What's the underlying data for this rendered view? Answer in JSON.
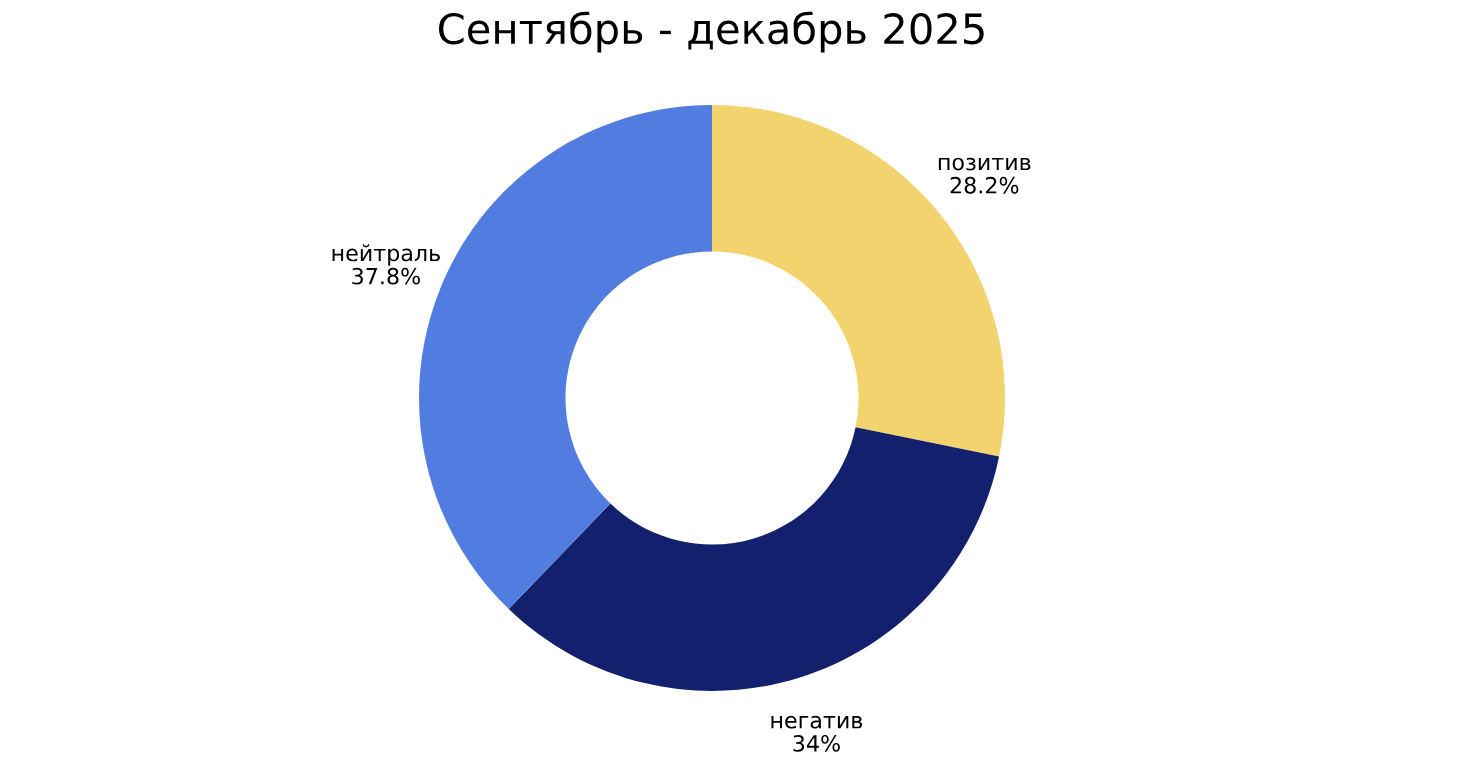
{
  "chart_data": {
    "type": "donut",
    "title": "Сентябрь - декабрь 2025",
    "categories": [
      "позитив",
      "негатив",
      "нейтраль"
    ],
    "values": [
      28.2,
      34,
      37.8
    ],
    "value_labels": [
      "28.2%",
      "34%",
      "37.8%"
    ],
    "colors": [
      "#f3d36e",
      "#13206e",
      "#517de0"
    ]
  }
}
